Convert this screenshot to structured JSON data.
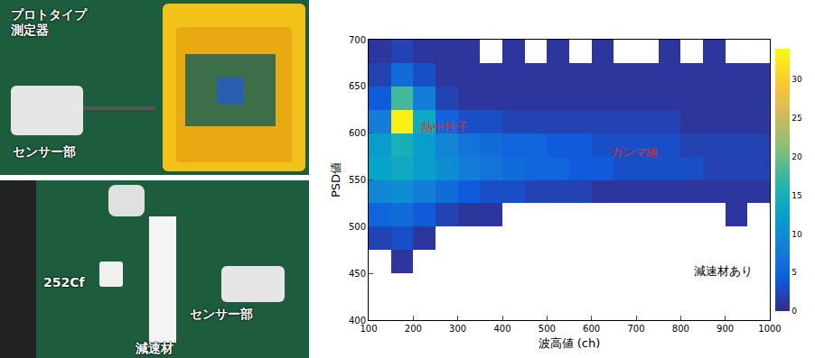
{
  "photos": {
    "top": {
      "labels": [
        "プロトタイプ測定器",
        "センサー部"
      ]
    },
    "bottom": {
      "labels": [
        "252Cf",
        "減速材",
        "センサー部"
      ]
    }
  },
  "chart_data": {
    "type": "heatmap",
    "x_label": "波高値 (ch)",
    "y_label": "PSD値",
    "xlim": [
      100,
      1000
    ],
    "ylim": [
      400,
      700
    ],
    "xticks": [
      100,
      200,
      300,
      400,
      500,
      600,
      700,
      800,
      900,
      1000
    ],
    "yticks": [
      400,
      450,
      500,
      550,
      600,
      650,
      700
    ],
    "x_bins": [
      100,
      150,
      200,
      250,
      300,
      350,
      400,
      450,
      500,
      550,
      600,
      650,
      700,
      750,
      800,
      850,
      900,
      950,
      1000
    ],
    "y_bins": [
      400,
      425,
      450,
      475,
      500,
      525,
      550,
      575,
      600,
      625,
      650,
      675,
      700
    ],
    "cells": [
      [
        null,
        null,
        null,
        null,
        null,
        null,
        null,
        null,
        null,
        null,
        null,
        null,
        null,
        null,
        null,
        null,
        null,
        null
      ],
      [
        null,
        null,
        null,
        null,
        null,
        null,
        null,
        null,
        null,
        null,
        null,
        null,
        null,
        null,
        null,
        null,
        null,
        null
      ],
      [
        null,
        1,
        null,
        null,
        null,
        null,
        null,
        null,
        null,
        null,
        null,
        null,
        null,
        null,
        null,
        null,
        null,
        null
      ],
      [
        2,
        3,
        1,
        null,
        null,
        null,
        null,
        null,
        null,
        null,
        null,
        null,
        null,
        null,
        null,
        null,
        null,
        null
      ],
      [
        5,
        6,
        4,
        2,
        1,
        1,
        null,
        null,
        null,
        null,
        null,
        null,
        null,
        null,
        null,
        null,
        1,
        null
      ],
      [
        9,
        10,
        8,
        6,
        4,
        3,
        3,
        2,
        2,
        2,
        1,
        1,
        1,
        1,
        1,
        1,
        1,
        1
      ],
      [
        13,
        14,
        12,
        10,
        8,
        7,
        6,
        5,
        5,
        4,
        4,
        3,
        3,
        3,
        3,
        2,
        2,
        2
      ],
      [
        12,
        15,
        12,
        9,
        7,
        6,
        5,
        5,
        4,
        4,
        3,
        3,
        3,
        3,
        2,
        2,
        2,
        2
      ],
      [
        8,
        33,
        14,
        5,
        3,
        3,
        2,
        2,
        2,
        2,
        2,
        2,
        2,
        2,
        1,
        1,
        1,
        1
      ],
      [
        4,
        18,
        8,
        2,
        1,
        1,
        1,
        1,
        1,
        1,
        1,
        1,
        1,
        1,
        1,
        1,
        1,
        1
      ],
      [
        2,
        6,
        3,
        1,
        1,
        1,
        1,
        1,
        1,
        1,
        1,
        1,
        1,
        1,
        1,
        1,
        1,
        1
      ],
      [
        1,
        2,
        1,
        1,
        1,
        null,
        1,
        null,
        1,
        null,
        1,
        null,
        null,
        1,
        null,
        1,
        null,
        null
      ]
    ],
    "colorbar": {
      "range": [
        0,
        34
      ],
      "ticks": [
        0,
        5,
        10,
        15,
        20,
        25,
        30
      ]
    },
    "annotations": [
      {
        "text": "熱中性子",
        "x": 270,
        "y": 607,
        "color": "#e3262b"
      },
      {
        "text": "ガンマ線",
        "x": 695,
        "y": 580,
        "color": "#e3262b"
      },
      {
        "text": "減速材あり",
        "x": 895,
        "y": 453,
        "color": "#000000"
      }
    ]
  }
}
